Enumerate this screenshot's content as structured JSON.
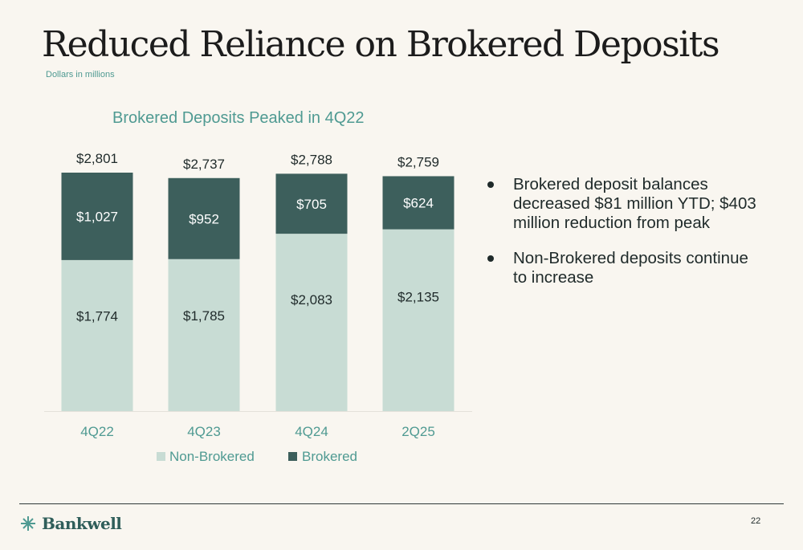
{
  "header": {
    "title": "Reduced Reliance on Brokered Deposits",
    "subtitle": "Dollars in millions"
  },
  "colors": {
    "non_brokered": "#c8dcd4",
    "brokered": "#3d5f5c",
    "accent": "#4f9a92"
  },
  "chart_data": {
    "type": "bar",
    "stacked": true,
    "title": "Brokered Deposits Peaked in 4Q22",
    "categories": [
      "4Q22",
      "4Q23",
      "4Q24",
      "2Q25"
    ],
    "series": [
      {
        "name": "Non-Brokered",
        "values": [
          1774,
          1785,
          2083,
          2135
        ],
        "labels": [
          "$1,774",
          "$1,785",
          "$2,083",
          "$2,135"
        ]
      },
      {
        "name": "Brokered",
        "values": [
          1027,
          952,
          705,
          624
        ],
        "labels": [
          "$1,027",
          "$952",
          "$705",
          "$624"
        ]
      }
    ],
    "totals": [
      2801,
      2737,
      2788,
      2759
    ],
    "total_labels": [
      "$2,801",
      "$2,737",
      "$2,788",
      "$2,759"
    ],
    "ylim": [
      0,
      2801
    ],
    "xlabel": "",
    "ylabel": "",
    "grid": false,
    "legend_position": "bottom"
  },
  "bullets": [
    "Brokered deposit balances decreased $81 million YTD; $403 million reduction from peak",
    "Non-Brokered deposits continue to increase"
  ],
  "footer": {
    "logo_text": "Bankwell",
    "page_number": "22"
  }
}
